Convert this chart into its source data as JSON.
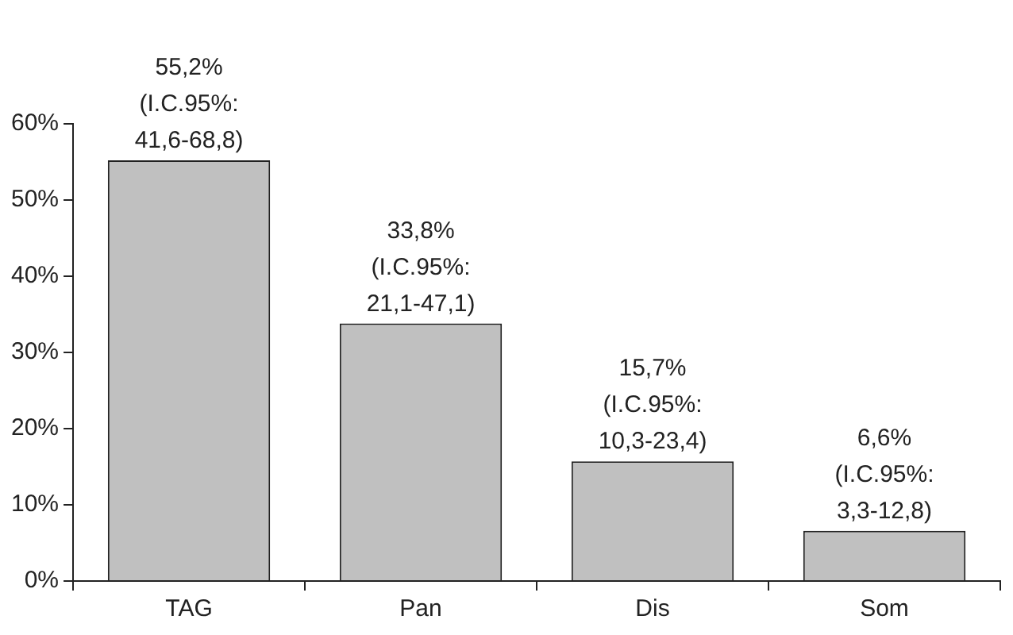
{
  "chart_data": {
    "type": "bar",
    "categories": [
      "TAG",
      "Pan",
      "Dis",
      "Som"
    ],
    "values": [
      55.2,
      33.8,
      15.7,
      6.6
    ],
    "color": "#c0c0c0",
    "value_labels": [
      "55,2% (I.C.95%: 41,6-68,8)",
      "33,8% (I.C.95%: 21,1-47,1)",
      "15,7% (I.C.95%: 10,3-23,4)",
      "6,6% (I.C.95%: 3,3-12,8)"
    ],
    "ylim": [
      0,
      60
    ],
    "yticks": [
      {
        "value": 0,
        "label": "0%"
      },
      {
        "value": 10,
        "label": "10%"
      },
      {
        "value": 20,
        "label": "20%"
      },
      {
        "value": 30,
        "label": "30%"
      },
      {
        "value": 40,
        "label": "40%"
      },
      {
        "value": 50,
        "label": "50%"
      },
      {
        "value": 60,
        "label": "60%"
      }
    ],
    "grid": false,
    "legend": false
  }
}
